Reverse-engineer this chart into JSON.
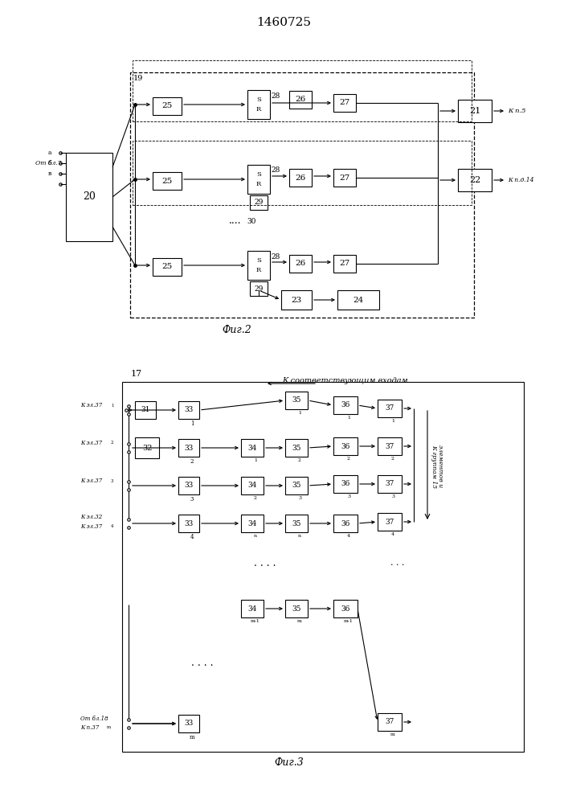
{
  "title": "1460725",
  "fig2_label": "Фиг.2",
  "fig3_label": "Фиг.3",
  "bg_color": "#ffffff"
}
